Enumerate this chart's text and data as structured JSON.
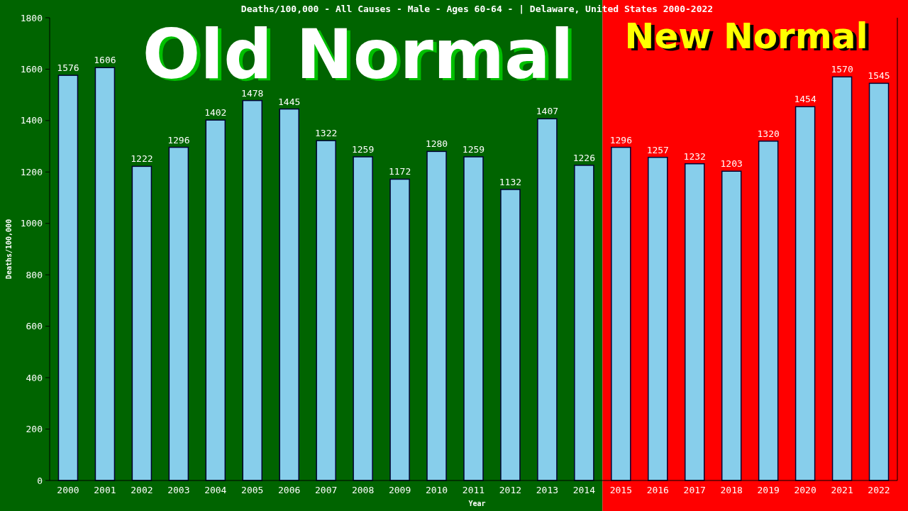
{
  "chart_data": {
    "type": "bar",
    "title": "Deaths/100,000 - All Causes - Male - Ages 60-64 -  | Delaware, United States 2000-2022",
    "xlabel": "Year",
    "ylabel": "Deaths/100,000",
    "categories": [
      "2000",
      "2001",
      "2002",
      "2003",
      "2004",
      "2005",
      "2006",
      "2007",
      "2008",
      "2009",
      "2010",
      "2011",
      "2012",
      "2013",
      "2014",
      "2015",
      "2016",
      "2017",
      "2018",
      "2019",
      "2020",
      "2021",
      "2022"
    ],
    "values": [
      1576,
      1606,
      1222,
      1296,
      1402,
      1478,
      1445,
      1322,
      1259,
      1172,
      1280,
      1259,
      1132,
      1407,
      1226,
      1296,
      1257,
      1232,
      1203,
      1320,
      1454,
      1570,
      1545
    ],
    "color": "#87ceeb",
    "ylim": [
      0,
      1800
    ],
    "yticks": [
      0,
      200,
      400,
      600,
      800,
      1000,
      1200,
      1400,
      1600,
      1800
    ],
    "data_labels": true,
    "grid": false,
    "legend": false,
    "bands": [
      {
        "axis": "x",
        "from": "2000",
        "to": "2014",
        "label": "Old Normal",
        "color": "#006400"
      },
      {
        "axis": "x",
        "from": "2015",
        "to": "2022",
        "label": "New Normal",
        "color": "#ff0000"
      }
    ]
  }
}
